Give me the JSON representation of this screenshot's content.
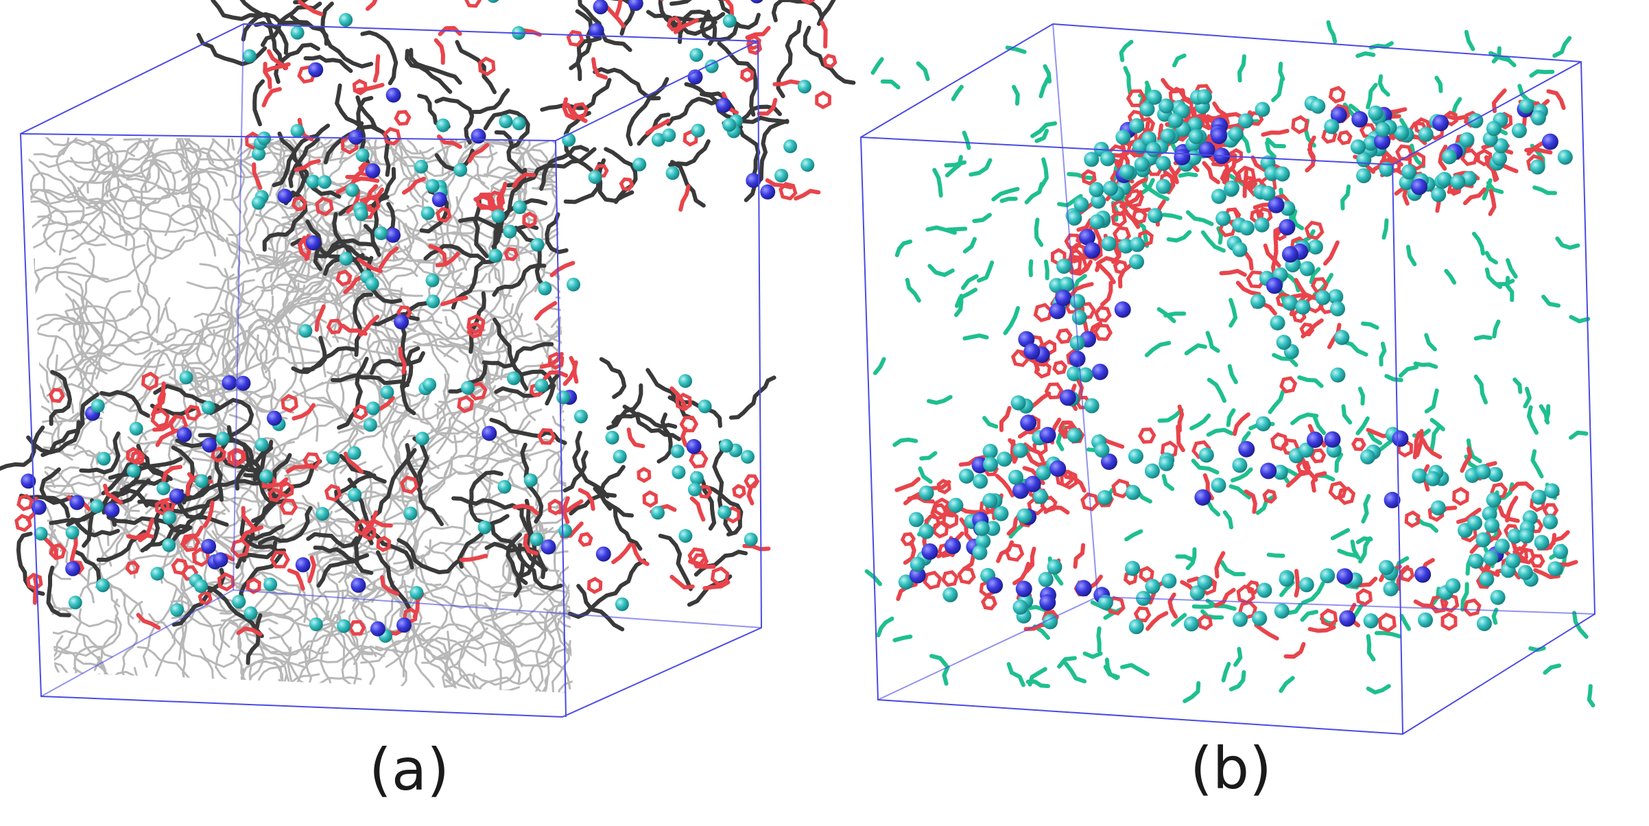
{
  "panels": [
    {
      "id": "a",
      "caption": "(a)",
      "components": [
        "surfactant-tails-gray",
        "surfactant-tails-dark",
        "headgroups-red",
        "beads-cyan",
        "beads-blue"
      ]
    },
    {
      "id": "b",
      "caption": "(b)",
      "components": [
        "fragments-green",
        "headgroups-red",
        "beads-cyan",
        "beads-blue"
      ]
    }
  ],
  "colors": {
    "box_edge": "#4a4ae6",
    "tail_gray": "#b7b7b7",
    "tail_dark": "#3a3a3a",
    "headgroup_red": "#e8444b",
    "bead_cyan": "#2fb8b8",
    "bead_blue": "#3838d8",
    "fragment_green": "#1fbf8f",
    "background": "#ffffff"
  }
}
